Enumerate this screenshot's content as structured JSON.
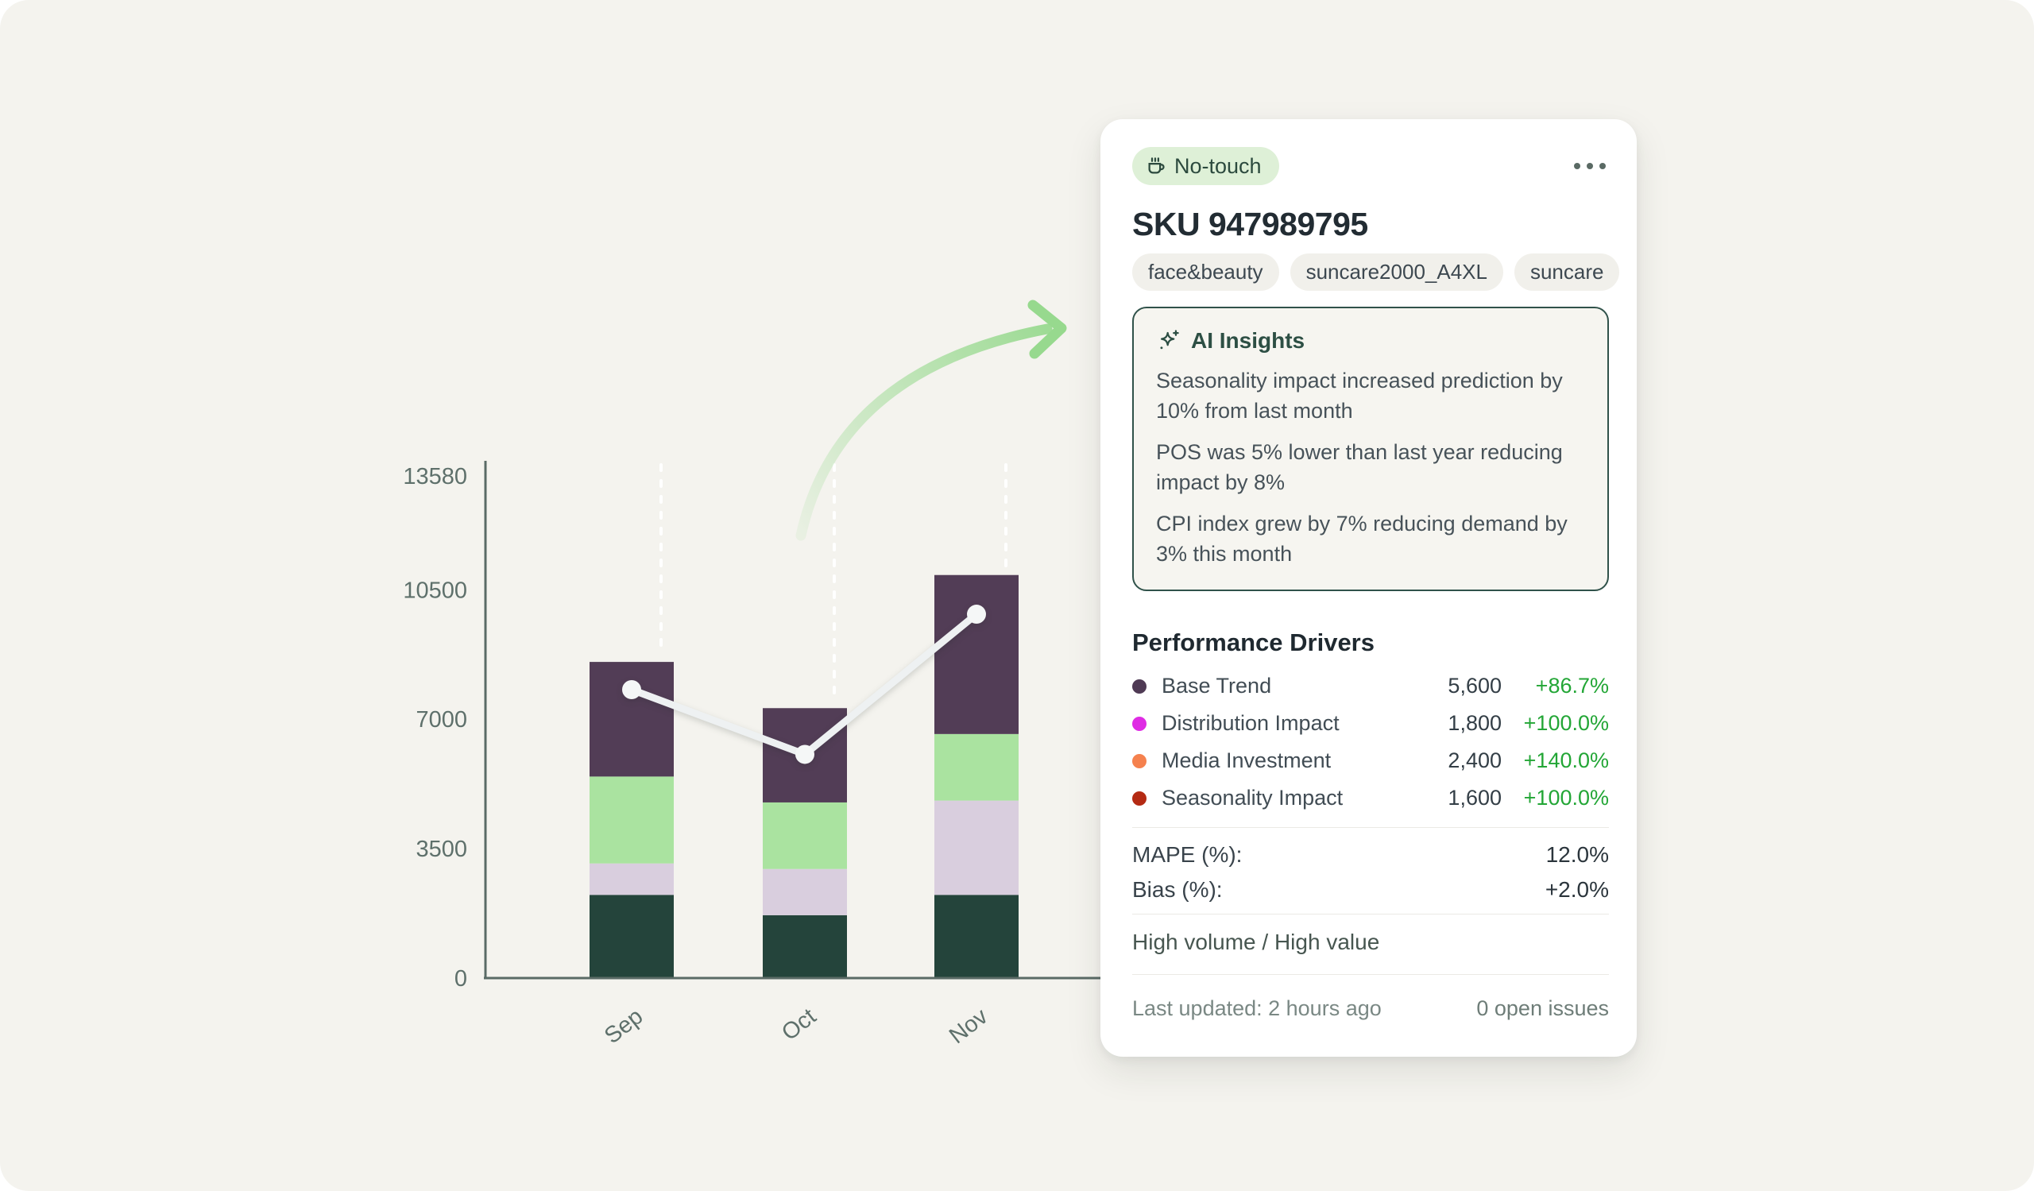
{
  "page": {
    "background": "#f4f3ee"
  },
  "card": {
    "badge": {
      "label": "No-touch",
      "icon": "coffee-cup-icon",
      "bg": "#def0d7",
      "color": "#2c4a3e"
    },
    "menu_icon": "ellipsis-icon",
    "title": "SKU 947989795",
    "tags": [
      "face&beauty",
      "suncare2000_A4XL",
      "suncare"
    ],
    "ai_insights": {
      "icon": "sparkle-icon",
      "title": "AI Insights",
      "items": [
        "Seasonality impact increased prediction by 10% from last month",
        "POS was 5% lower than last year reducing impact by 8%",
        "CPI index grew by 7% reducing demand by 3% this month"
      ]
    },
    "performance": {
      "title": "Performance Drivers",
      "change_color": "#23a636",
      "drivers": [
        {
          "label": "Base Trend",
          "value": "5,600",
          "change": "+86.7%",
          "dot_color": "#4f3a54"
        },
        {
          "label": "Distribution Impact",
          "value": "1,800",
          "change": "+100.0%",
          "dot_color": "#df2ce4"
        },
        {
          "label": "Media Investment",
          "value": "2,400",
          "change": "+140.0%",
          "dot_color": "#f5814e"
        },
        {
          "label": "Seasonality Impact",
          "value": "1,600",
          "change": "+100.0%",
          "dot_color": "#b42a13"
        }
      ]
    },
    "metrics": [
      {
        "label": "MAPE (%):",
        "value": "12.0%"
      },
      {
        "label": "Bias (%):",
        "value": "+2.0%"
      }
    ],
    "segment_label": "High volume / High value",
    "footer": {
      "last_updated": "Last updated: 2 hours ago",
      "open_issues": "0 open issues"
    }
  },
  "chart_data": {
    "type": "bar",
    "subtype": "stacked-bars-with-line-overlay",
    "categories": [
      "Sep",
      "Oct",
      "Nov"
    ],
    "y_ticks": [
      0,
      3500,
      7000,
      10500,
      13580
    ],
    "ylim": [
      0,
      13580
    ],
    "grid": "dashed-white-verticals-above-bars",
    "legend": "none",
    "axis_color": "#5a6b66",
    "tick_label_color": "#5e706b",
    "series": [
      {
        "name": "segment-dark-green",
        "color": "#24443b",
        "values": [
          2250,
          1700,
          2250
        ]
      },
      {
        "name": "segment-lavender",
        "color": "#d9cede",
        "values": [
          850,
          1250,
          2550
        ]
      },
      {
        "name": "segment-light-green",
        "color": "#aae3a0",
        "values": [
          2350,
          1800,
          1800
        ]
      },
      {
        "name": "segment-purple",
        "color": "#523d56",
        "values": [
          3100,
          2550,
          4300
        ]
      }
    ],
    "line": {
      "name": "forecast-line",
      "color": "#eef1f2",
      "dot_color": "#f5f7f7",
      "values": [
        7800,
        6050,
        9840
      ]
    }
  },
  "arrow": {
    "name": "growth-arrow",
    "color": "#97d98e"
  }
}
